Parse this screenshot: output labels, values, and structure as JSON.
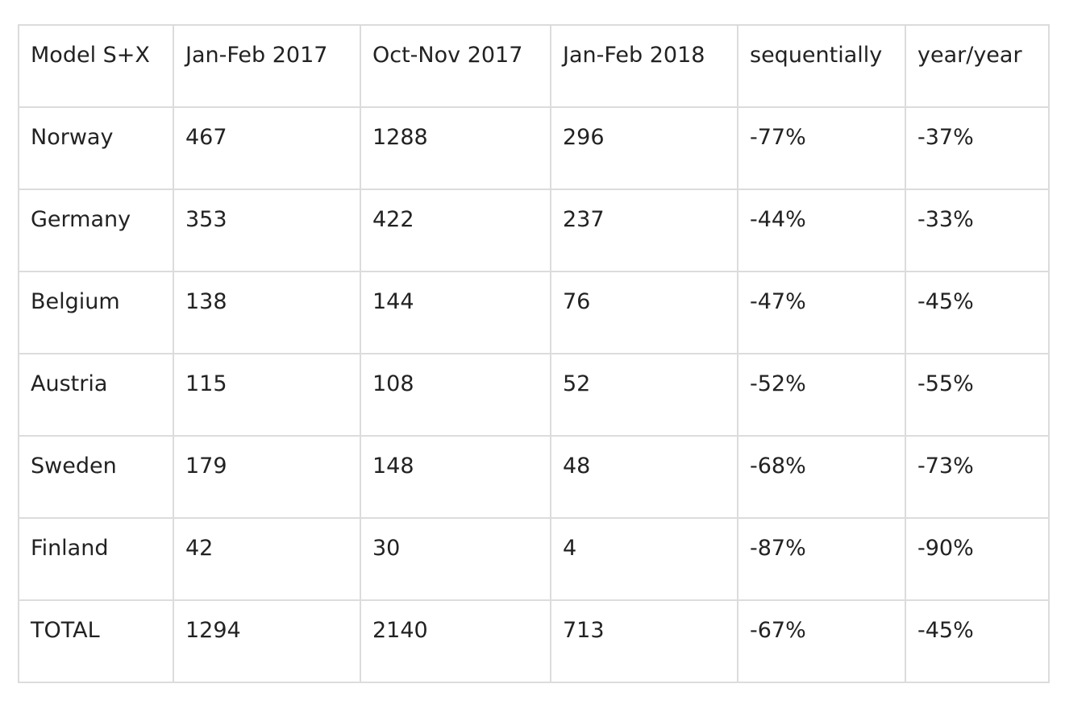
{
  "chart_data": {
    "type": "table",
    "columns": [
      "Model S+X",
      "Jan-Feb 2017",
      "Oct-Nov 2017",
      "Jan-Feb 2018",
      "sequentially",
      "year/year"
    ],
    "rows": [
      [
        "Norway",
        "467",
        "1288",
        "296",
        "-77%",
        "-37%"
      ],
      [
        "Germany",
        "353",
        "422",
        "237",
        "-44%",
        "-33%"
      ],
      [
        "Belgium",
        "138",
        "144",
        "76",
        "-47%",
        "-45%"
      ],
      [
        "Austria",
        "115",
        "108",
        "52",
        "-52%",
        "-55%"
      ],
      [
        "Sweden",
        "179",
        "148",
        "48",
        "-68%",
        "-73%"
      ],
      [
        "Finland",
        "42",
        "30",
        "4",
        "-87%",
        "-90%"
      ],
      [
        "TOTAL",
        "1294",
        "2140",
        "713",
        "-67%",
        "-45%"
      ]
    ],
    "colors": {
      "text": "#222222",
      "grid": "#dcdcdc",
      "background": "#ffffff"
    }
  }
}
